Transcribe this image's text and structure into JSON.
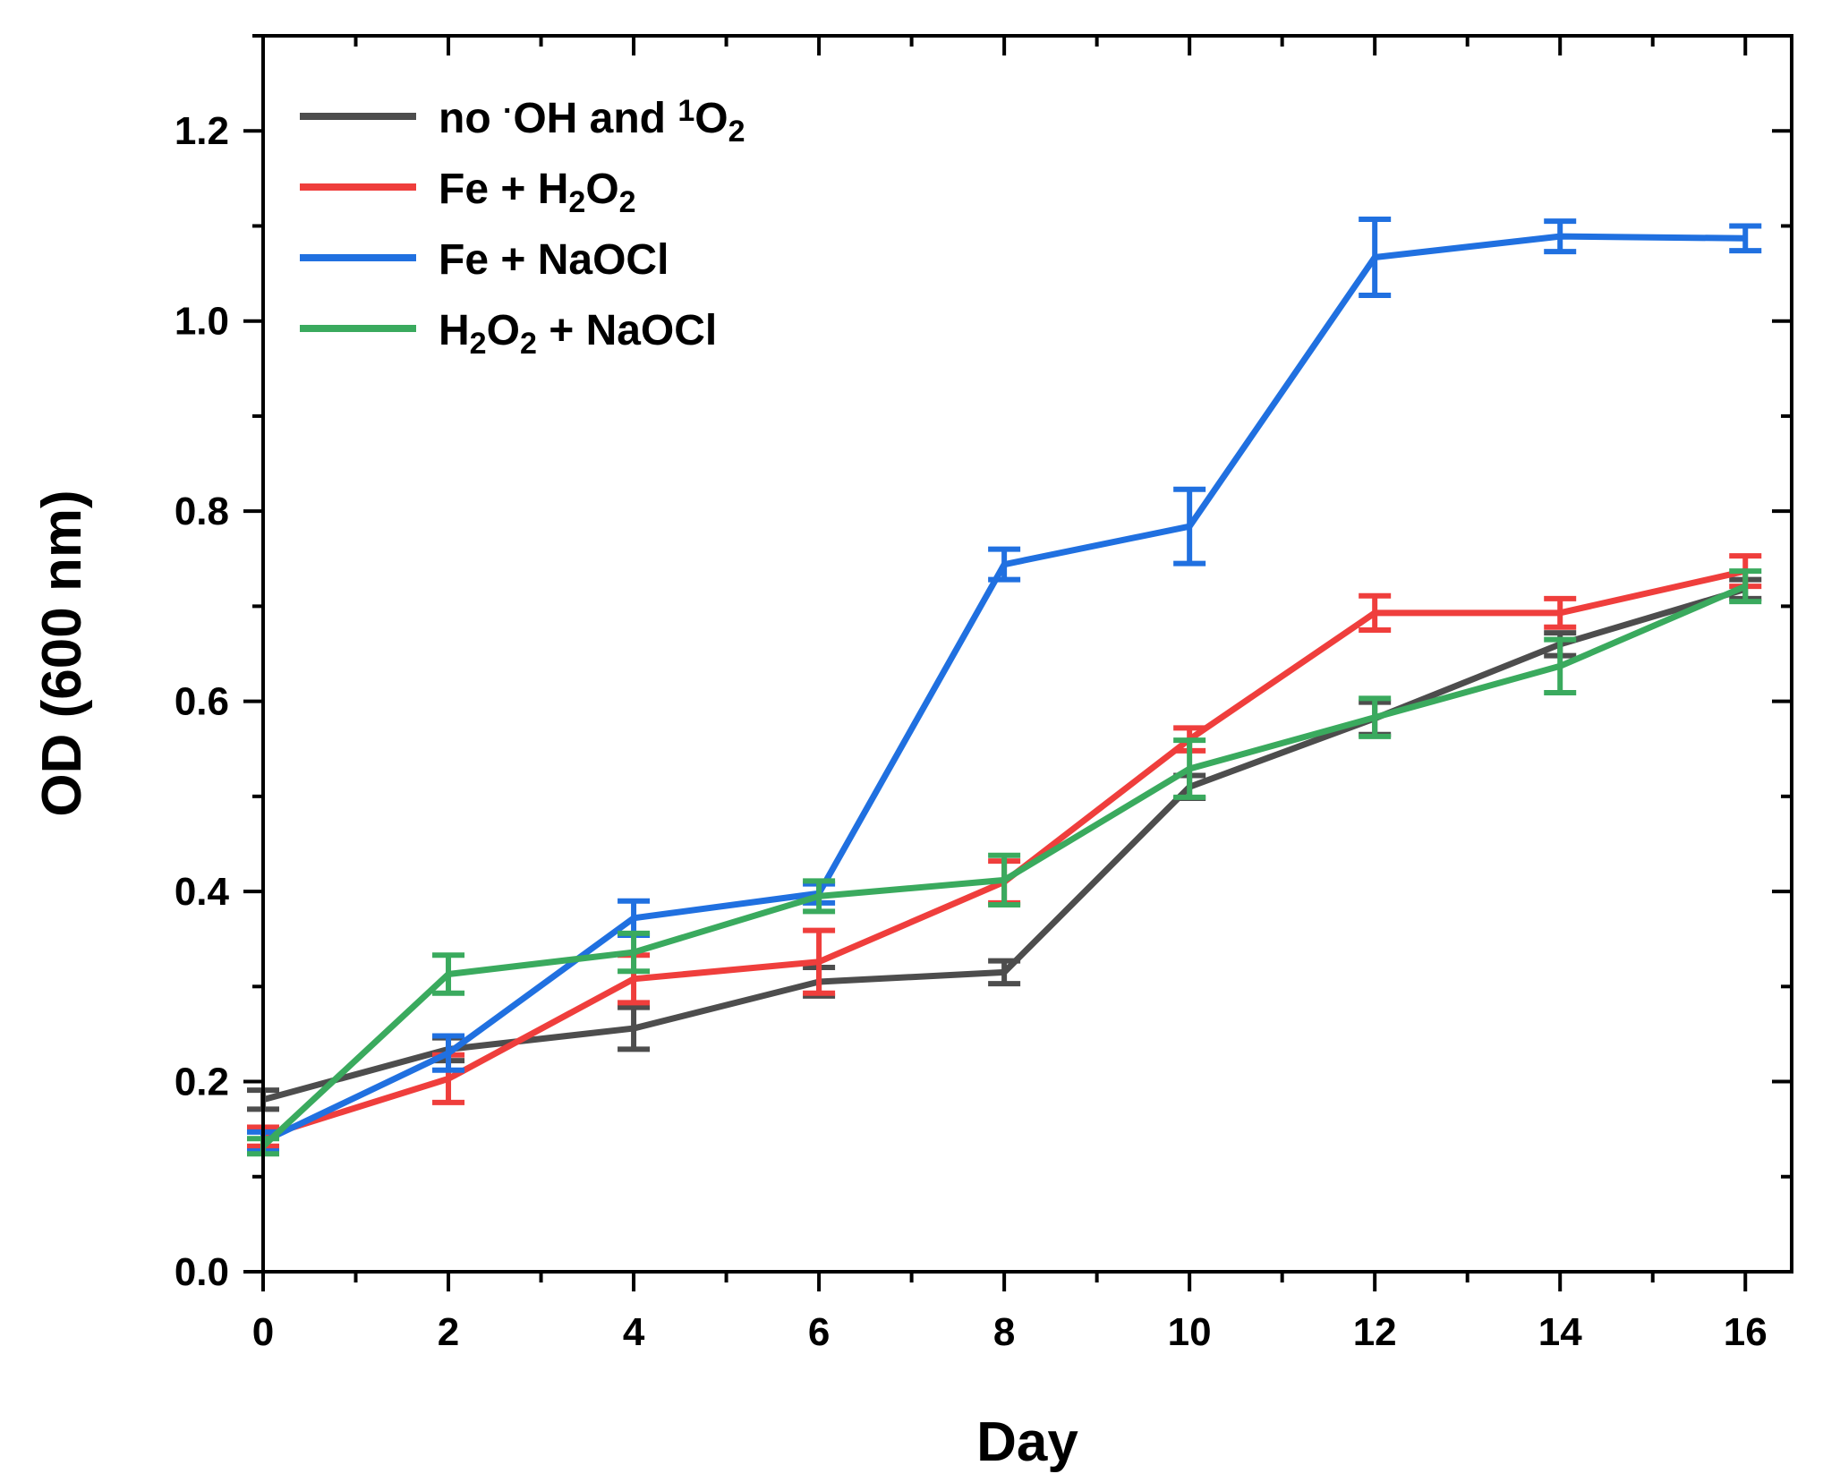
{
  "chart_data": {
    "type": "line",
    "xlabel": "Day",
    "ylabel": "OD (600 nm)",
    "xlim": [
      0,
      16.5
    ],
    "ylim": [
      0,
      1.3
    ],
    "x_ticks": [
      "0",
      "2",
      "4",
      "6",
      "8",
      "10",
      "12",
      "14",
      "16"
    ],
    "y_ticks": [
      "0.0",
      "0.2",
      "0.4",
      "0.6",
      "0.8",
      "1.0",
      "1.2"
    ],
    "legend_position": "top-left",
    "grid": false,
    "x": [
      0,
      2,
      4,
      6,
      8,
      10,
      12,
      14,
      16
    ],
    "series": [
      {
        "name": "no ·OH and ¹O₂",
        "label_parts": [
          {
            "t": "no "
          },
          {
            "t": "·",
            "sup": true
          },
          {
            "t": "OH and "
          },
          {
            "t": "1",
            "sup": true
          },
          {
            "t": "O"
          },
          {
            "t": "2",
            "sub": true
          }
        ],
        "color": "#4d4d4d",
        "values": [
          0.181,
          0.234,
          0.256,
          0.305,
          0.315,
          0.51,
          0.582,
          0.66,
          0.718
        ],
        "errors": [
          0.01,
          0.012,
          0.022,
          0.015,
          0.012,
          0.012,
          0.017,
          0.012,
          0.01
        ]
      },
      {
        "name": "Fe + H₂O₂",
        "label_parts": [
          {
            "t": "Fe + H"
          },
          {
            "t": "2",
            "sub": true
          },
          {
            "t": "O"
          },
          {
            "t": "2",
            "sub": true
          }
        ],
        "color": "#ef3e3c",
        "values": [
          0.142,
          0.203,
          0.308,
          0.326,
          0.41,
          0.56,
          0.693,
          0.693,
          0.737
        ],
        "errors": [
          0.01,
          0.025,
          0.025,
          0.033,
          0.022,
          0.012,
          0.018,
          0.015,
          0.016
        ]
      },
      {
        "name": "Fe + NaOCl",
        "label_parts": [
          {
            "t": "Fe + NaOCl"
          }
        ],
        "color": "#2070e0",
        "values": [
          0.137,
          0.23,
          0.372,
          0.398,
          0.744,
          0.784,
          1.067,
          1.089,
          1.087
        ],
        "errors": [
          0.01,
          0.018,
          0.018,
          0.01,
          0.016,
          0.039,
          0.04,
          0.016,
          0.013
        ]
      },
      {
        "name": "H₂O₂ + NaOCl",
        "label_parts": [
          {
            "t": "H"
          },
          {
            "t": "2",
            "sub": true
          },
          {
            "t": "O"
          },
          {
            "t": "2",
            "sub": true
          },
          {
            "t": " + NaOCl"
          }
        ],
        "color": "#3aaa5e",
        "values": [
          0.132,
          0.313,
          0.336,
          0.395,
          0.412,
          0.529,
          0.583,
          0.637,
          0.721
        ],
        "errors": [
          0.008,
          0.02,
          0.02,
          0.016,
          0.026,
          0.03,
          0.02,
          0.028,
          0.016
        ]
      }
    ]
  }
}
